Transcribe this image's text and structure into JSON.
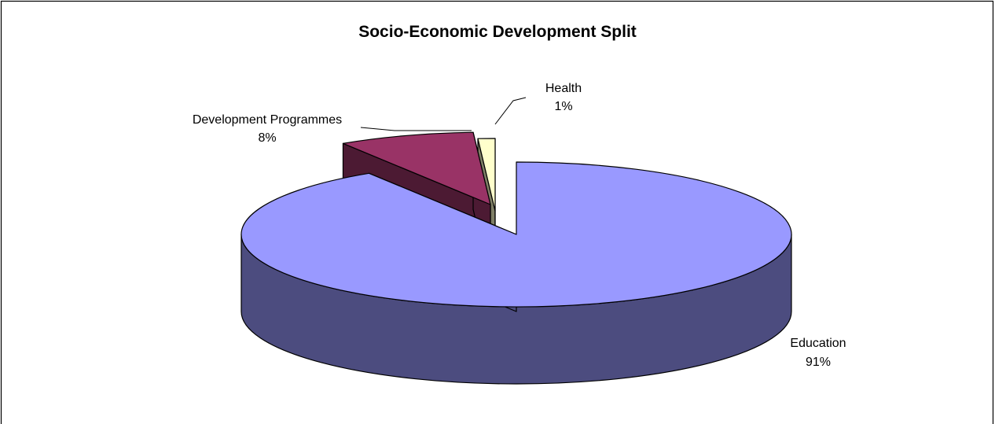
{
  "chart_data": {
    "type": "pie",
    "title": "Socio-Economic Development Split",
    "slices": [
      {
        "label": "Education",
        "value": 91,
        "value_label": "91%",
        "top_color": "#9999ff",
        "side_color": "#4c4c7f"
      },
      {
        "label": "Development Programmes",
        "value": 8,
        "value_label": "8%",
        "top_color": "#993366",
        "side_color": "#4c1a33"
      },
      {
        "label": "Health",
        "value": 1,
        "value_label": "1%",
        "top_color": "#ffffcc",
        "side_color": "#7f7f66"
      }
    ],
    "style": "3d-exploded",
    "legend": "none",
    "data_labels": "category-and-percent"
  }
}
